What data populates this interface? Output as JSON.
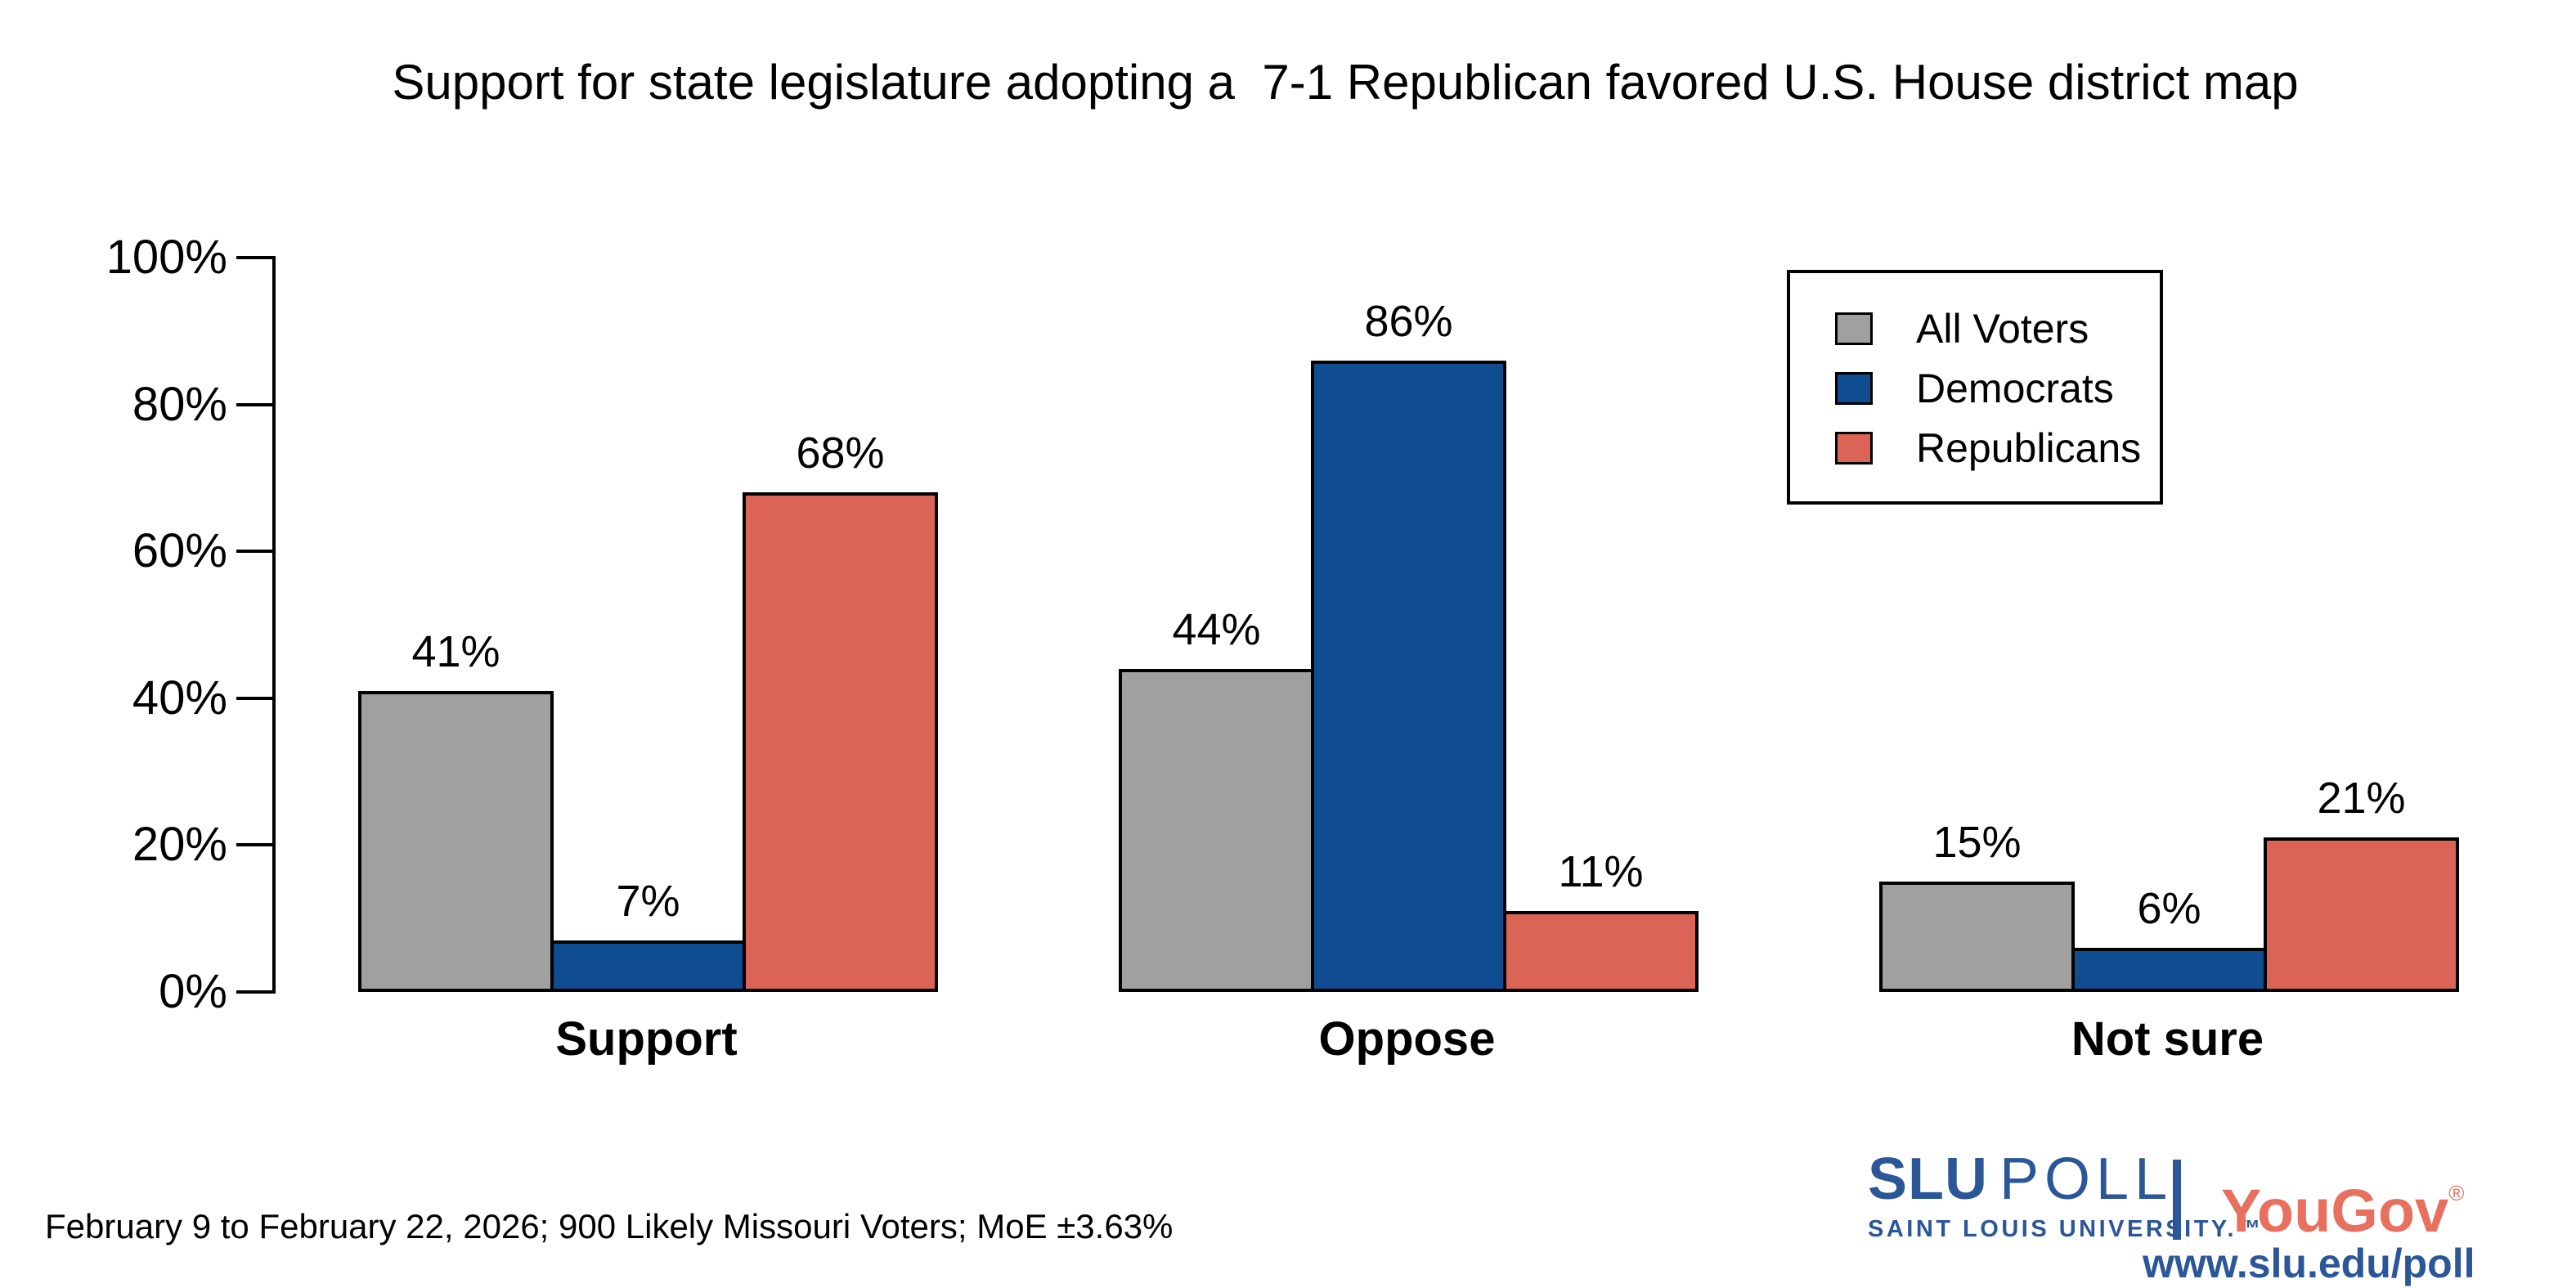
{
  "title": "Support for state legislature adopting a  7-1 Republican favored U.S. House district map",
  "chart_data": {
    "type": "bar",
    "title": "Support for state legislature adopting a 7-1 Republican favored U.S. House district map",
    "categories": [
      "Support",
      "Oppose",
      "Not sure"
    ],
    "series": [
      {
        "name": "All Voters",
        "color": "#a0a0a0",
        "values": [
          41,
          44,
          15
        ],
        "labels": [
          "41%",
          "44%",
          "15%"
        ]
      },
      {
        "name": "Democrats",
        "color": "#104d90",
        "values": [
          7,
          86,
          6
        ],
        "labels": [
          "7%",
          "86%",
          "6%"
        ]
      },
      {
        "name": "Republicans",
        "color": "#db6456",
        "values": [
          68,
          11,
          21
        ],
        "labels": [
          "68%",
          "11%",
          "21%"
        ]
      }
    ],
    "xlabel": "",
    "ylabel": "",
    "ylim": [
      0,
      100
    ],
    "yticks": [
      0,
      20,
      40,
      60,
      80,
      100
    ],
    "ytick_labels": [
      "0%",
      "20%",
      "40%",
      "60%",
      "80%",
      "100%"
    ],
    "grid": false,
    "legend_position": "top-right",
    "bar_outline_color": "#000000"
  },
  "footer": {
    "methodology": "February 9 to February 22, 2026; 900 Likely Missouri Voters; MoE ±3.63%"
  },
  "branding": {
    "slu": "SLU",
    "poll": "POLL",
    "subtitle": "SAINT LOUIS UNIVERSITY.™",
    "partner": "YouGov",
    "registered": "®",
    "url": "www.slu.edu/poll",
    "slu_blue": "#2b5697",
    "yougov_red": "#e8705f"
  }
}
